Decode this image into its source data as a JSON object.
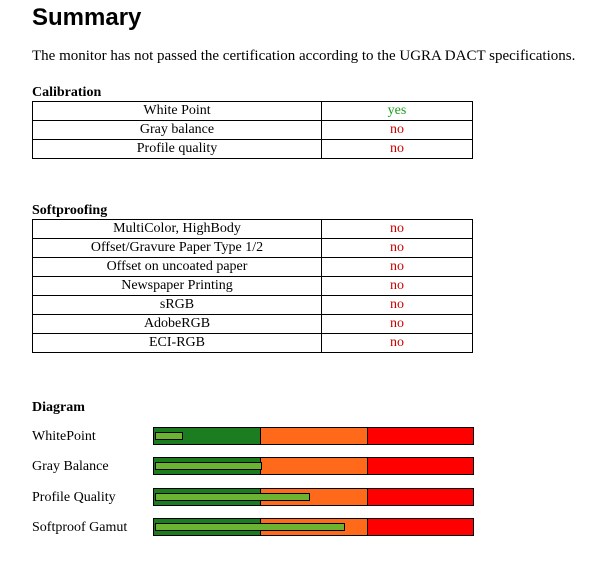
{
  "title": "Summary",
  "intro": "The monitor has not passed the certification according to the UGRA DACT specifications.",
  "colors": {
    "pass": "#1a9e1a",
    "fail": "#cc0000",
    "zone_good": "#1b7d1f",
    "zone_mid": "#ff6a1a",
    "zone_bad": "#ff0000",
    "level": "#6ab432"
  },
  "calibration": {
    "heading": "Calibration",
    "rows": [
      {
        "label": "White Point",
        "value": "yes",
        "status": "pass"
      },
      {
        "label": "Gray balance",
        "value": "no",
        "status": "fail"
      },
      {
        "label": "Profile quality",
        "value": "no",
        "status": "fail"
      }
    ]
  },
  "softproofing": {
    "heading": "Softproofing",
    "rows": [
      {
        "label": "MultiColor, HighBody",
        "value": "no",
        "status": "fail"
      },
      {
        "label": "Offset/Gravure Paper Type 1/2",
        "value": "no",
        "status": "fail"
      },
      {
        "label": "Offset on uncoated paper",
        "value": "no",
        "status": "fail"
      },
      {
        "label": "Newspaper Printing",
        "value": "no",
        "status": "fail"
      },
      {
        "label": "sRGB",
        "value": "no",
        "status": "fail"
      },
      {
        "label": "AdobeRGB",
        "value": "no",
        "status": "fail"
      },
      {
        "label": "ECI-RGB",
        "value": "no",
        "status": "fail"
      }
    ]
  },
  "diagram": {
    "heading": "Diagram",
    "rows": [
      {
        "label": "WhitePoint",
        "level": 0.09
      },
      {
        "label": "Gray Balance",
        "level": 0.34
      },
      {
        "label": "Profile Quality",
        "level": 0.49
      },
      {
        "label": "Softproof Gamut",
        "level": 0.6
      }
    ]
  }
}
